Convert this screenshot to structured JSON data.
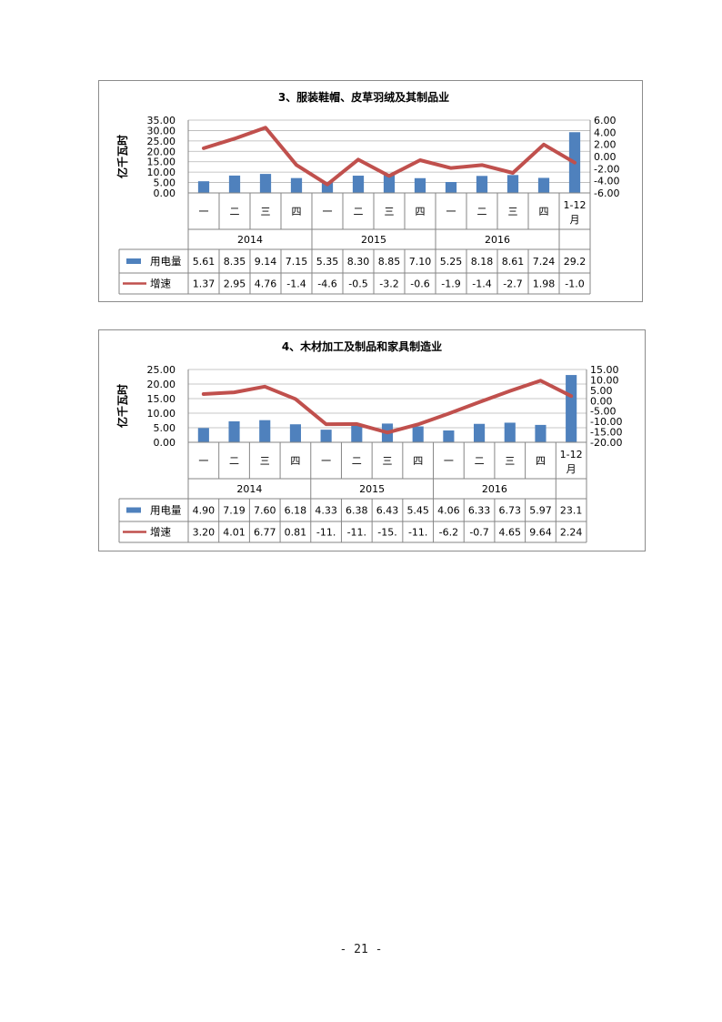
{
  "page_number": "- 21 -",
  "colors": {
    "bar": "#4f81bd",
    "line": "#c0504d",
    "grid": "#b5b5b5",
    "axis": "#868686"
  },
  "chart_data": [
    {
      "type": "bar+line",
      "title": "3、服装鞋帽、皮草羽绒及其制品业",
      "ylabel": "亿千瓦时",
      "categories": [
        "一",
        "二",
        "三",
        "四",
        "一",
        "二",
        "三",
        "四",
        "一",
        "二",
        "三",
        "四",
        "1-12月"
      ],
      "years": [
        "2014",
        "2015",
        "2016"
      ],
      "ylim": [
        0,
        35
      ],
      "yticks": [
        "35.00",
        "30.00",
        "25.00",
        "20.00",
        "15.00",
        "10.00",
        "5.00",
        "0.00"
      ],
      "y2lim": [
        -6,
        6
      ],
      "y2ticks": [
        "6.00",
        "4.00",
        "2.00",
        "0.00",
        "-2.00",
        "-4.00",
        "-6.00"
      ],
      "series": [
        {
          "name": "用电量",
          "kind": "bar",
          "axis": "left",
          "values": [
            5.61,
            8.35,
            9.14,
            7.15,
            5.35,
            8.3,
            8.85,
            7.1,
            5.25,
            8.18,
            8.61,
            7.24,
            29.2
          ],
          "labels": [
            "5.61",
            "8.35",
            "9.14",
            "7.15",
            "5.35",
            "8.30",
            "8.85",
            "7.10",
            "5.25",
            "8.18",
            "8.61",
            "7.24",
            "29.2"
          ]
        },
        {
          "name": "增速",
          "kind": "line",
          "axis": "right",
          "values": [
            1.37,
            2.95,
            4.76,
            -1.4,
            -4.6,
            -0.5,
            -3.2,
            -0.6,
            -1.9,
            -1.4,
            -2.7,
            1.98,
            -1.0
          ],
          "labels": [
            "1.37",
            "2.95",
            "4.76",
            "-1.4",
            "-4.6",
            "-0.5",
            "-3.2",
            "-0.6",
            "-1.9",
            "-1.4",
            "-2.7",
            "1.98",
            "-1.0"
          ]
        }
      ]
    },
    {
      "type": "bar+line",
      "title": "4、木材加工及制品和家具制造业",
      "ylabel": "亿千瓦时",
      "categories": [
        "一",
        "二",
        "三",
        "四",
        "一",
        "二",
        "三",
        "四",
        "一",
        "二",
        "三",
        "四",
        "1-12月"
      ],
      "years": [
        "2014",
        "2015",
        "2016"
      ],
      "ylim": [
        0,
        25
      ],
      "yticks": [
        "25.00",
        "20.00",
        "15.00",
        "10.00",
        "5.00",
        "0.00"
      ],
      "y2lim": [
        -20,
        15
      ],
      "y2ticks": [
        "15.00",
        "10.00",
        "5.00",
        "0.00",
        "-5.00",
        "-10.00",
        "-15.00",
        "-20.00"
      ],
      "series": [
        {
          "name": "用电量",
          "kind": "bar",
          "axis": "left",
          "values": [
            4.9,
            7.19,
            7.6,
            6.18,
            4.33,
            6.38,
            6.43,
            5.45,
            4.06,
            6.33,
            6.73,
            5.97,
            23.1
          ],
          "labels": [
            "4.90",
            "7.19",
            "7.60",
            "6.18",
            "4.33",
            "6.38",
            "6.43",
            "5.45",
            "4.06",
            "6.33",
            "6.73",
            "5.97",
            "23.1"
          ]
        },
        {
          "name": "增速",
          "kind": "line",
          "axis": "right",
          "values": [
            3.2,
            4.01,
            6.77,
            0.81,
            -11.3,
            -11.2,
            -15.3,
            -11.4,
            -6.2,
            -0.7,
            4.65,
            9.64,
            2.24
          ],
          "labels": [
            "3.20",
            "4.01",
            "6.77",
            "0.81",
            "-11.",
            "-11.",
            "-15.",
            "-11.",
            "-6.2",
            "-0.7",
            "4.65",
            "9.64",
            "2.24"
          ]
        }
      ]
    }
  ]
}
